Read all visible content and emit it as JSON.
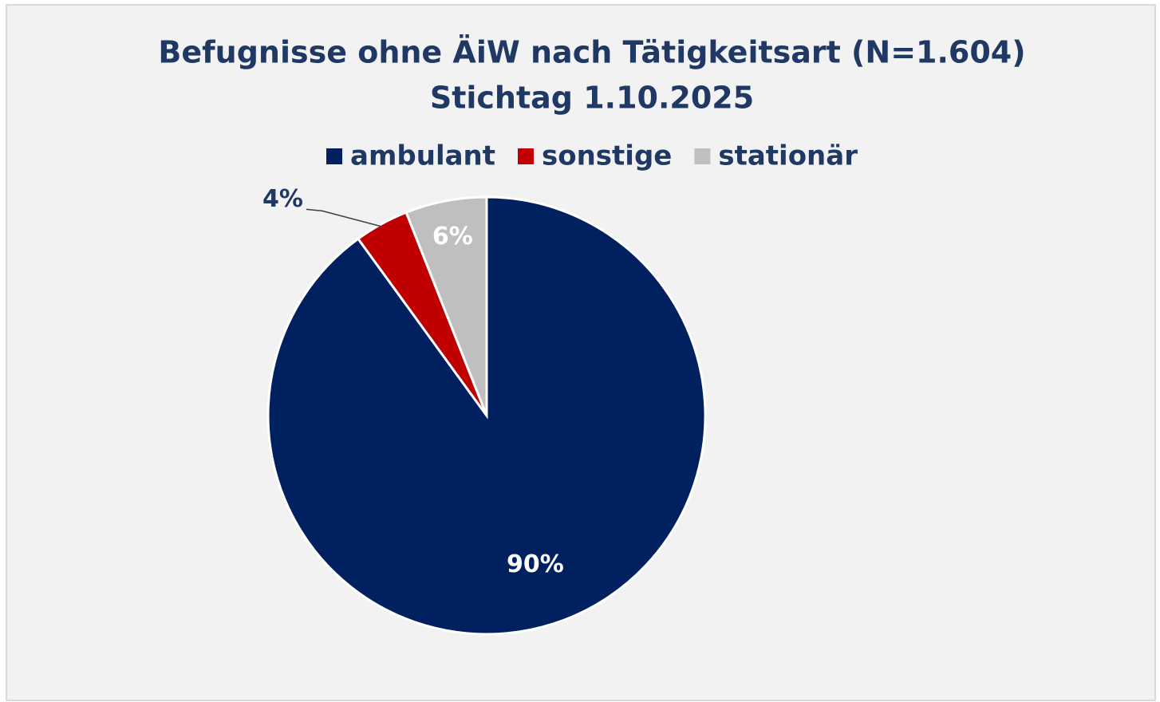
{
  "chart_data": {
    "type": "pie",
    "title": "Befugnisse ohne ÄiW nach Tätigkeitsart (N=1.604)",
    "subtitle": "Stichtag 1.10.2025",
    "categories": [
      "ambulant",
      "sonstige",
      "stationär"
    ],
    "values": [
      90,
      4,
      6
    ],
    "value_labels": [
      "90%",
      "4%",
      "6%"
    ],
    "colors": [
      "#002060",
      "#c00000",
      "#bfbfbf"
    ],
    "legend": "top"
  }
}
